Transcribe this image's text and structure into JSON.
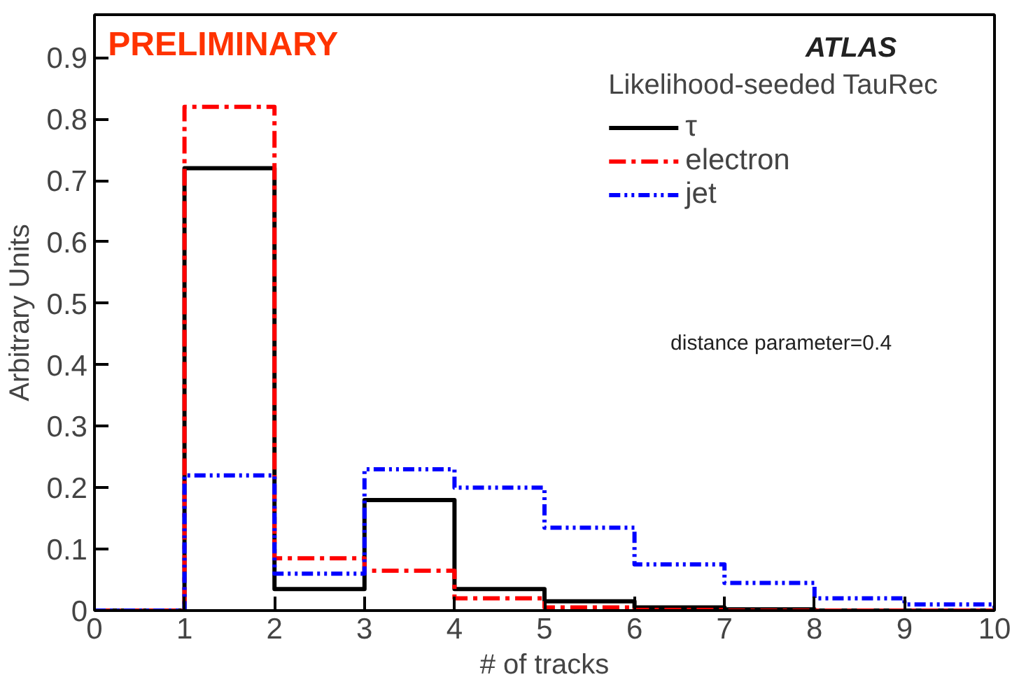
{
  "chart_data": {
    "type": "histogram",
    "xlabel": "# of tracks",
    "ylabel": "Arbitrary Units",
    "legend_title": "Likelihood-seeded TauRec",
    "bins": [
      0,
      1,
      2,
      3,
      4,
      5,
      6,
      7,
      8,
      9,
      10
    ],
    "series": [
      {
        "name": "τ",
        "color": "#000000",
        "line_style": "solid",
        "values": [
          0,
          0.72,
          0.035,
          0.18,
          0.035,
          0.015,
          0.005,
          0.002,
          0,
          0
        ]
      },
      {
        "name": "electron",
        "color": "#ff0000",
        "line_style": "dashdot",
        "values": [
          0,
          0.82,
          0.085,
          0.065,
          0.02,
          0.005,
          0.001,
          0,
          0,
          0
        ]
      },
      {
        "name": "jet",
        "color": "#0000ff",
        "line_style": "dashdotdot",
        "values": [
          0,
          0.22,
          0.06,
          0.23,
          0.2,
          0.135,
          0.075,
          0.045,
          0.02,
          0.01
        ]
      }
    ],
    "xlim": [
      0,
      10
    ],
    "ylim": [
      0,
      0.97
    ],
    "xticks": [
      0,
      1,
      2,
      3,
      4,
      5,
      6,
      7,
      8,
      9,
      10
    ],
    "yticks": [
      0,
      0.1,
      0.2,
      0.3,
      0.4,
      0.5,
      0.6,
      0.7,
      0.8,
      0.9
    ],
    "legend": "top right",
    "grid": false,
    "annotations": [
      "PRELIMINARY",
      "ATLAS",
      "distance parameter=0.4"
    ]
  }
}
